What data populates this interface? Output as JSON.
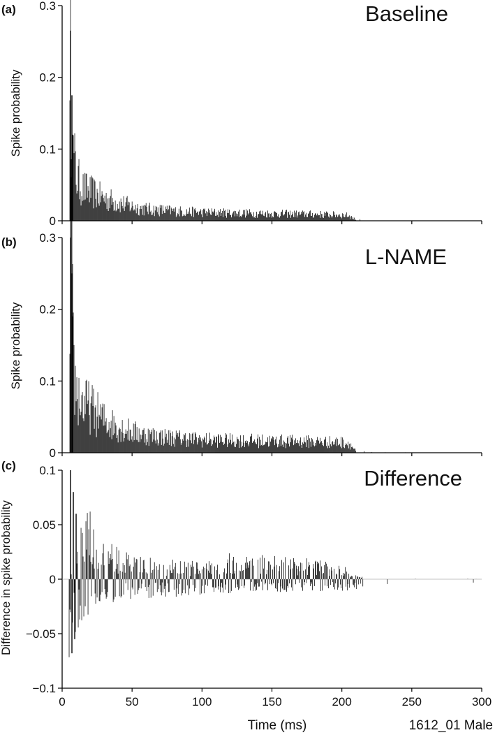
{
  "figure": {
    "xlabel": "Time (ms)",
    "footnote": "1612_01 Male"
  },
  "colors": {
    "bars": "#000000",
    "axis": "#000000",
    "background": "#ffffff"
  },
  "chart_data": [
    {
      "panel_label": "(a)",
      "type": "bar",
      "title": "Baseline",
      "ylabel": "Spike probability",
      "xlim": [
        0,
        300
      ],
      "ylim": [
        0,
        0.3
      ],
      "xticks": [
        "0",
        "50",
        "100",
        "150",
        "200",
        "250",
        "300"
      ],
      "yticks": [
        "0",
        "0.1",
        "0.2",
        "0.3"
      ],
      "bin_width_ms": 0.5,
      "x": [
        5,
        6,
        7,
        7.5,
        8,
        9,
        10,
        12,
        15,
        20,
        25,
        30,
        40,
        50,
        60,
        80,
        100,
        120,
        150,
        180,
        200,
        205,
        210,
        220,
        250,
        300
      ],
      "values": [
        0.0,
        0.265,
        0.175,
        0.12,
        0.1,
        0.09,
        0.07,
        0.06,
        0.05,
        0.045,
        0.04,
        0.035,
        0.028,
        0.022,
        0.018,
        0.015,
        0.013,
        0.012,
        0.011,
        0.01,
        0.009,
        0.008,
        0.002,
        0.0005,
        0.0004,
        0.0003
      ]
    },
    {
      "panel_label": "(b)",
      "type": "bar",
      "title": "L-NAME",
      "ylabel": "Spike probability",
      "xlim": [
        0,
        300
      ],
      "ylim": [
        0,
        0.3
      ],
      "xticks": [
        "0",
        "50",
        "100",
        "150",
        "200",
        "250",
        "300"
      ],
      "yticks": [
        "0",
        "0.1",
        "0.2",
        "0.3"
      ],
      "bin_width_ms": 0.5,
      "x": [
        5,
        6,
        7,
        7.5,
        8,
        9,
        10,
        12,
        15,
        20,
        25,
        30,
        40,
        50,
        60,
        80,
        100,
        120,
        150,
        180,
        200,
        205,
        210,
        220,
        250,
        300
      ],
      "values": [
        0.0,
        0.3,
        0.25,
        0.19,
        0.15,
        0.11,
        0.1,
        0.085,
        0.075,
        0.07,
        0.06,
        0.05,
        0.04,
        0.032,
        0.027,
        0.023,
        0.02,
        0.019,
        0.018,
        0.017,
        0.016,
        0.015,
        0.003,
        0.0005,
        0.0004,
        0.0003
      ]
    },
    {
      "panel_label": "(c)",
      "type": "bar",
      "title": "Difference",
      "ylabel": "Difference in spike probability",
      "xlim": [
        0,
        300
      ],
      "ylim": [
        -0.1,
        0.1
      ],
      "xticks": [
        "0",
        "50",
        "100",
        "150",
        "200",
        "250",
        "300"
      ],
      "yticks": [
        "−0.1",
        "−0.05",
        "0",
        "0.05",
        "0.1"
      ],
      "bin_width_ms": 0.5,
      "x": [
        5,
        6,
        7,
        8,
        9,
        10,
        12,
        15,
        20,
        25,
        30,
        40,
        50,
        60,
        80,
        100,
        120,
        150,
        180,
        200,
        205,
        210,
        220,
        250,
        300
      ],
      "values": [
        0.0,
        0.1,
        -0.068,
        0.08,
        -0.055,
        0.06,
        0.05,
        0.045,
        0.055,
        0.04,
        0.03,
        0.025,
        0.02,
        0.018,
        0.015,
        0.014,
        0.02,
        0.018,
        0.016,
        0.012,
        0.01,
        0.003,
        0.001,
        0.0005,
        0.0004
      ],
      "negative_envelope": [
        -0.068,
        -0.05,
        -0.03,
        -0.02,
        -0.015,
        -0.012,
        -0.01,
        -0.009,
        -0.008,
        -0.005,
        -0.002
      ]
    }
  ]
}
